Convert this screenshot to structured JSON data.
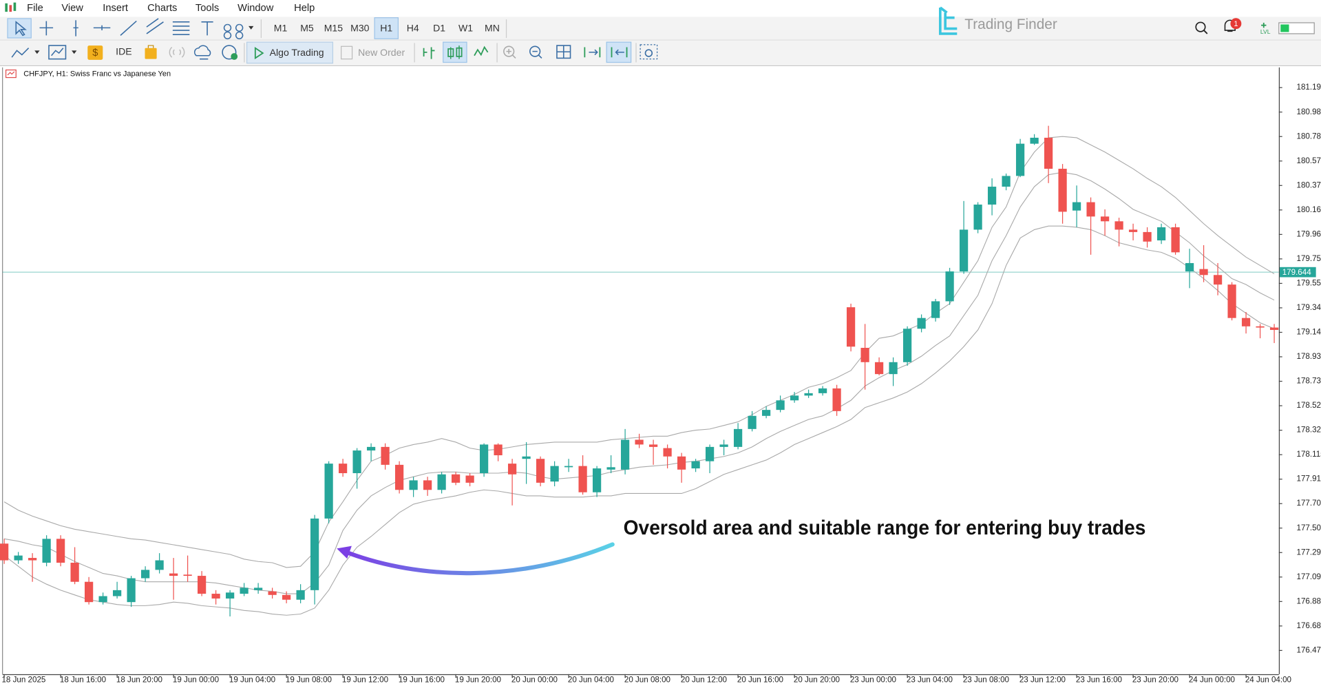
{
  "menu": [
    "File",
    "View",
    "Insert",
    "Charts",
    "Tools",
    "Window",
    "Help"
  ],
  "timeframes": [
    "M1",
    "M5",
    "M15",
    "M30",
    "H1",
    "H4",
    "D1",
    "W1",
    "MN"
  ],
  "active_timeframe": "H1",
  "toolbar": {
    "ide": "IDE",
    "algo_trading": "Algo Trading",
    "new_order": "New Order"
  },
  "logo": "Trading Finder",
  "notification_count": "1",
  "level_label": "LVL",
  "chart_data": {
    "type": "candlestick",
    "title": "CHFJPY, H1:  Swiss Franc vs Japanese Yen",
    "annotation": "Oversold area and suitable range for entering buy trades",
    "up_color": "#26a69a",
    "down_color": "#ef5350",
    "current_price": 179.644,
    "current_price_color": "#26a69a",
    "ylim": [
      176.276,
      181.359
    ],
    "yticks": [
      {
        "value": 181.19,
        "label": "181.190"
      },
      180.985,
      {
        "value": 180.78,
        "label": "180.780"
      },
      180.575,
      {
        "value": 180.37,
        "label": "180.370"
      },
      180.165,
      {
        "value": 179.96,
        "label": "179.960"
      },
      179.755,
      {
        "value": 179.55,
        "label": "179.550"
      },
      179.345,
      {
        "value": 179.14,
        "label": "179.140"
      },
      178.935,
      {
        "value": 178.73,
        "label": "178.730"
      },
      178.525,
      {
        "value": 178.32,
        "label": "178.320"
      },
      178.115,
      {
        "value": 177.91,
        "label": "177.910"
      },
      177.705,
      {
        "value": 177.5,
        "label": "177.500"
      },
      177.295,
      {
        "value": 177.09,
        "label": "177.090"
      },
      176.885,
      {
        "value": 176.68,
        "label": "176.680"
      },
      176.475
    ],
    "categories": [
      "18 Jun 2025",
      null,
      null,
      null,
      "18 Jun 16:00",
      null,
      null,
      null,
      "18 Jun 20:00",
      null,
      null,
      null,
      "19 Jun 00:00",
      null,
      null,
      null,
      "19 Jun 04:00",
      null,
      null,
      null,
      "19 Jun 08:00",
      null,
      null,
      null,
      "19 Jun 12:00",
      null,
      null,
      null,
      "19 Jun 16:00",
      null,
      null,
      null,
      "19 Jun 20:00",
      null,
      null,
      null,
      "20 Jun 00:00",
      null,
      null,
      null,
      "20 Jun 04:00",
      null,
      null,
      null,
      "20 Jun 08:00",
      null,
      null,
      null,
      "20 Jun 12:00",
      null,
      null,
      null,
      "20 Jun 16:00",
      null,
      null,
      null,
      "20 Jun 20:00",
      null,
      null,
      null,
      "23 Jun 00:00",
      null,
      null,
      null,
      "23 Jun 04:00",
      null,
      null,
      null,
      "23 Jun 08:00",
      null,
      null,
      null,
      "23 Jun 12:00",
      null,
      null,
      null,
      "23 Jun 16:00",
      null,
      null,
      null,
      "23 Jun 20:00",
      null,
      null,
      null,
      "24 Jun 00:00",
      null,
      null,
      null,
      "24 Jun 04:00",
      null,
      null
    ],
    "ohlc": [
      [
        177.37,
        177.41,
        177.2,
        177.23
      ],
      [
        177.23,
        177.3,
        177.2,
        177.27
      ],
      [
        177.25,
        177.29,
        177.05,
        177.23
      ],
      [
        177.21,
        177.44,
        177.18,
        177.41
      ],
      [
        177.41,
        177.44,
        177.18,
        177.21
      ],
      [
        177.21,
        177.34,
        177.03,
        177.05
      ],
      [
        177.05,
        177.09,
        176.86,
        176.88
      ],
      [
        176.88,
        176.96,
        176.86,
        176.93
      ],
      [
        176.93,
        177.05,
        176.91,
        176.98
      ],
      [
        176.88,
        177.1,
        176.84,
        177.08
      ],
      [
        177.08,
        177.18,
        177.05,
        177.15
      ],
      [
        177.15,
        177.29,
        177.12,
        177.23
      ],
      [
        177.12,
        177.25,
        176.9,
        177.1
      ],
      [
        177.11,
        177.27,
        177.05,
        177.1
      ],
      [
        177.1,
        177.14,
        176.93,
        176.95
      ],
      [
        176.95,
        176.98,
        176.86,
        176.91
      ],
      [
        176.91,
        176.98,
        176.76,
        176.96
      ],
      [
        176.95,
        177.04,
        176.93,
        177.0
      ],
      [
        176.98,
        177.04,
        176.95,
        177.0
      ],
      [
        176.97,
        177.0,
        176.91,
        176.94
      ],
      [
        176.94,
        176.97,
        176.87,
        176.9
      ],
      [
        176.9,
        177.03,
        176.87,
        176.98
      ],
      [
        176.98,
        177.61,
        176.86,
        177.58
      ],
      [
        177.58,
        178.06,
        177.54,
        178.04
      ],
      [
        178.04,
        178.08,
        177.93,
        177.96
      ],
      [
        177.96,
        178.17,
        177.83,
        178.15
      ],
      [
        178.15,
        178.21,
        178.06,
        178.18
      ],
      [
        178.18,
        178.21,
        177.99,
        178.03
      ],
      [
        178.03,
        178.06,
        177.79,
        177.82
      ],
      [
        177.82,
        177.93,
        177.76,
        177.9
      ],
      [
        177.9,
        177.93,
        177.77,
        177.82
      ],
      [
        177.82,
        177.97,
        177.79,
        177.95
      ],
      [
        177.95,
        177.97,
        177.86,
        177.88
      ],
      [
        177.94,
        177.96,
        177.85,
        177.88
      ],
      [
        177.96,
        178.21,
        177.93,
        178.2
      ],
      [
        178.2,
        178.21,
        178.06,
        178.11
      ],
      [
        178.04,
        178.08,
        177.69,
        177.95
      ],
      [
        178.08,
        178.22,
        177.87,
        178.1
      ],
      [
        178.08,
        178.1,
        177.85,
        177.88
      ],
      [
        177.89,
        178.06,
        177.85,
        178.02
      ],
      [
        178.01,
        178.08,
        177.97,
        178.02
      ],
      [
        178.02,
        178.11,
        177.78,
        177.8
      ],
      [
        177.8,
        178.02,
        177.76,
        178.0
      ],
      [
        177.99,
        178.11,
        177.96,
        178.01
      ],
      [
        177.99,
        178.33,
        177.95,
        178.24
      ],
      [
        178.24,
        178.29,
        178.17,
        178.2
      ],
      [
        178.2,
        178.24,
        178.03,
        178.18
      ],
      [
        178.17,
        178.2,
        178.0,
        178.1
      ],
      [
        178.1,
        178.13,
        177.88,
        177.99
      ],
      [
        178.0,
        178.08,
        177.97,
        178.06
      ],
      [
        178.06,
        178.2,
        177.96,
        178.18
      ],
      [
        178.18,
        178.24,
        178.11,
        178.2
      ],
      [
        178.18,
        178.38,
        178.16,
        178.33
      ],
      [
        178.33,
        178.48,
        178.31,
        178.44
      ],
      [
        178.44,
        178.52,
        178.42,
        178.49
      ],
      [
        178.49,
        178.61,
        178.47,
        178.57
      ],
      [
        178.57,
        178.64,
        178.55,
        178.61
      ],
      [
        178.61,
        178.66,
        178.59,
        178.63
      ],
      [
        178.63,
        178.69,
        178.61,
        178.67
      ],
      [
        178.67,
        178.7,
        178.44,
        178.48
      ],
      [
        179.35,
        179.38,
        178.98,
        179.02
      ],
      [
        179.01,
        179.21,
        178.66,
        178.89
      ],
      [
        178.89,
        178.93,
        178.78,
        178.79
      ],
      [
        178.79,
        178.93,
        178.69,
        178.89
      ],
      [
        178.89,
        179.19,
        178.86,
        179.17
      ],
      [
        179.17,
        179.29,
        179.14,
        179.26
      ],
      [
        179.26,
        179.42,
        179.23,
        179.4
      ],
      [
        179.4,
        179.68,
        179.37,
        179.65
      ],
      [
        179.65,
        180.24,
        179.63,
        180.0
      ],
      [
        180.0,
        180.23,
        179.97,
        180.21
      ],
      [
        180.21,
        180.43,
        180.12,
        180.36
      ],
      [
        180.36,
        180.47,
        180.33,
        180.45
      ],
      [
        180.45,
        180.76,
        180.44,
        180.72
      ],
      [
        180.72,
        180.8,
        180.71,
        180.77
      ],
      [
        180.77,
        180.87,
        180.39,
        180.51
      ],
      [
        180.51,
        180.55,
        180.05,
        180.15
      ],
      [
        180.16,
        180.37,
        180.02,
        180.23
      ],
      [
        180.23,
        180.27,
        179.79,
        180.11
      ],
      [
        180.11,
        180.17,
        179.95,
        180.07
      ],
      [
        180.07,
        180.1,
        179.86,
        180.0
      ],
      [
        180.0,
        180.05,
        179.91,
        179.98
      ],
      [
        179.98,
        180.02,
        179.85,
        179.9
      ],
      [
        179.91,
        180.05,
        179.88,
        180.02
      ],
      [
        180.02,
        180.05,
        179.79,
        179.81
      ],
      [
        179.65,
        179.84,
        179.51,
        179.72
      ],
      [
        179.67,
        179.87,
        179.56,
        179.62
      ],
      [
        179.62,
        179.72,
        179.45,
        179.54
      ],
      [
        179.54,
        179.56,
        179.24,
        179.26
      ],
      [
        179.26,
        179.31,
        179.13,
        179.19
      ],
      [
        179.19,
        179.21,
        179.09,
        179.18
      ],
      [
        179.18,
        179.21,
        179.05,
        179.16
      ]
    ],
    "lines": [
      {
        "color": "#a8a8a8",
        "values": [
          177.72,
          177.65,
          177.6,
          177.56,
          177.52,
          177.49,
          177.47,
          177.45,
          177.43,
          177.41,
          177.4,
          177.38,
          177.36,
          177.34,
          177.32,
          177.3,
          177.28,
          177.24,
          177.22,
          177.21,
          177.17,
          177.18,
          177.3,
          177.55,
          177.72,
          177.9,
          178.06,
          178.11,
          178.17,
          178.2,
          178.22,
          178.25,
          178.22,
          178.17,
          178.15,
          178.16,
          178.18,
          178.2,
          178.21,
          178.22,
          178.22,
          178.22,
          178.22,
          178.24,
          178.25,
          178.26,
          178.27,
          178.27,
          178.3,
          178.32,
          178.33,
          178.36,
          178.39,
          178.45,
          178.52,
          178.57,
          178.62,
          178.68,
          178.71,
          178.76,
          178.82,
          178.97,
          179.09,
          179.11,
          179.16,
          179.21,
          179.3,
          179.38,
          179.56,
          179.74,
          180.02,
          180.19,
          180.48,
          180.65,
          180.77,
          180.78,
          180.77,
          180.71,
          180.65,
          180.58,
          180.51,
          180.43,
          180.36,
          180.27,
          180.16,
          180.05,
          179.95,
          179.86,
          179.77,
          179.7,
          179.63
        ]
      },
      {
        "color": "#a8a8a8",
        "values": [
          177.41,
          177.39,
          177.36,
          177.34,
          177.28,
          177.22,
          177.17,
          177.12,
          177.1,
          177.07,
          177.05,
          177.05,
          177.05,
          177.05,
          177.05,
          177.04,
          177.02,
          177.0,
          176.98,
          176.97,
          176.95,
          176.95,
          177.04,
          177.19,
          177.48,
          177.65,
          177.77,
          177.84,
          177.9,
          177.93,
          177.96,
          177.97,
          177.97,
          177.96,
          177.96,
          177.96,
          177.97,
          177.96,
          177.93,
          177.91,
          177.92,
          177.93,
          177.94,
          177.97,
          177.99,
          178.01,
          178.02,
          178.03,
          178.05,
          178.06,
          178.08,
          178.1,
          178.13,
          178.18,
          178.25,
          178.31,
          178.36,
          178.41,
          178.44,
          178.5,
          178.57,
          178.69,
          178.76,
          178.82,
          178.87,
          178.94,
          179.03,
          179.11,
          179.28,
          179.45,
          179.74,
          179.95,
          180.19,
          180.36,
          180.46,
          180.48,
          180.46,
          180.41,
          180.34,
          180.26,
          180.17,
          180.12,
          180.07,
          179.98,
          179.89,
          179.78,
          179.69,
          179.59,
          179.54,
          179.47,
          179.41
        ]
      },
      {
        "color": "#a8a8a8",
        "values": [
          177.27,
          177.18,
          177.09,
          177.03,
          176.98,
          176.94,
          176.9,
          176.88,
          176.86,
          176.85,
          176.85,
          176.86,
          176.88,
          176.87,
          176.85,
          176.84,
          176.83,
          176.81,
          176.8,
          176.78,
          176.77,
          176.78,
          176.83,
          176.98,
          177.19,
          177.34,
          177.43,
          177.53,
          177.63,
          177.7,
          177.73,
          177.75,
          177.77,
          177.8,
          177.82,
          177.81,
          177.79,
          177.77,
          177.77,
          177.76,
          177.76,
          177.76,
          177.77,
          177.77,
          177.79,
          177.79,
          177.79,
          177.79,
          177.79,
          177.83,
          177.89,
          177.95,
          177.99,
          178.03,
          178.07,
          178.13,
          178.2,
          178.25,
          178.3,
          178.35,
          178.41,
          178.51,
          178.55,
          178.59,
          178.64,
          178.71,
          178.8,
          178.9,
          179.02,
          179.16,
          179.38,
          179.7,
          179.93,
          180.0,
          180.03,
          180.03,
          180.02,
          180.0,
          179.95,
          179.89,
          179.86,
          179.83,
          179.81,
          179.76,
          179.68,
          179.59,
          179.49,
          179.38,
          179.3,
          179.22,
          179.17
        ]
      }
    ]
  }
}
